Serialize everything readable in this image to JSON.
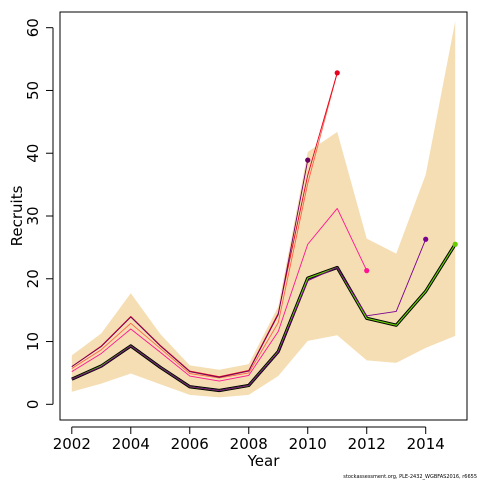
{
  "chart_data": {
    "type": "line",
    "xlabel": "Year",
    "ylabel": "Recruits",
    "xlim": [
      2001.6,
      2015.4
    ],
    "ylim": [
      -2.5,
      62.5
    ],
    "x_ticks": [
      2002,
      2004,
      2006,
      2008,
      2010,
      2012,
      2014
    ],
    "y_ticks": [
      0,
      10,
      20,
      30,
      40,
      50,
      60
    ],
    "grid": false,
    "legend": "none",
    "note": "stockassessment.org, PLE-2432_WGBFAS2016, r6655",
    "band_color": "#F5DEB3",
    "confidence_band": {
      "x": [
        2002,
        2003,
        2004,
        2005,
        2006,
        2007,
        2008,
        2009,
        2010,
        2011,
        2012,
        2013,
        2014,
        2015
      ],
      "lower": [
        2,
        3.3,
        4.9,
        3.2,
        1.5,
        1.1,
        1.5,
        4.5,
        10.1,
        11,
        7,
        6.6,
        9,
        10.9
      ],
      "upper": [
        7.8,
        11.3,
        17.7,
        11.2,
        6.2,
        5.5,
        6.4,
        15.6,
        40.2,
        43.4,
        26.4,
        24,
        36.6,
        61
      ]
    },
    "series": [
      {
        "color": "#000000",
        "x": [
          2002,
          2003,
          2004,
          2005,
          2006,
          2007,
          2008,
          2009,
          2010,
          2011,
          2012,
          2013,
          2014,
          2015
        ],
        "values": [
          4,
          6.1,
          9.3,
          5.9,
          2.8,
          2.2,
          3,
          8.4,
          20.1,
          21.8,
          13.7,
          12.6,
          18,
          25.5
        ]
      },
      {
        "color": "#66CC00",
        "x": [
          2002,
          2003,
          2004,
          2005,
          2006,
          2007,
          2008,
          2009,
          2010,
          2011,
          2012,
          2013,
          2014,
          2015
        ],
        "values": [
          4,
          6.1,
          9.3,
          5.9,
          2.8,
          2.2,
          3,
          8.4,
          20.1,
          21.8,
          13.7,
          12.6,
          18,
          25.5
        ],
        "end_point": true
      },
      {
        "color": "#7A0090",
        "x": [
          2002,
          2003,
          2004,
          2005,
          2006,
          2007,
          2008,
          2009,
          2010,
          2011,
          2012,
          2013,
          2014
        ],
        "values": [
          4,
          6,
          9.3,
          5.9,
          2.8,
          2.2,
          3,
          8.3,
          19.7,
          21.8,
          14.1,
          14.8,
          26.3
        ],
        "end_point": true
      },
      {
        "color": "#FF1493",
        "x": [
          2002,
          2003,
          2004,
          2005,
          2006,
          2007,
          2008,
          2009,
          2010,
          2011,
          2012
        ],
        "values": [
          5.2,
          8.1,
          12,
          8.3,
          4.5,
          3.7,
          4.6,
          11.6,
          25.5,
          31.2,
          21.3
        ],
        "end_point": true
      },
      {
        "color": "#FF6347",
        "x": [
          2002,
          2003,
          2004,
          2005,
          2006,
          2007,
          2008,
          2009,
          2010,
          2011
        ],
        "values": [
          5.7,
          8.7,
          12.9,
          8.9,
          4.9,
          4.2,
          5,
          13,
          35.2,
          52.8
        ],
        "end_point": false
      },
      {
        "color": "#E8001C",
        "x": [
          2002,
          2003,
          2004,
          2005,
          2006,
          2007,
          2008,
          2009,
          2010,
          2011
        ],
        "values": [
          6,
          9.3,
          14,
          9.4,
          5.3,
          4.4,
          5.4,
          14.5,
          36.5,
          52.8
        ],
        "end_point": true
      },
      {
        "color": "#6B0060",
        "x": [
          2002,
          2003,
          2004,
          2005,
          2006,
          2007,
          2008,
          2009,
          2010
        ],
        "values": [
          6,
          9.2,
          13.9,
          9.3,
          5.2,
          4.3,
          5.3,
          14.3,
          38.9
        ],
        "end_point": true
      }
    ]
  }
}
